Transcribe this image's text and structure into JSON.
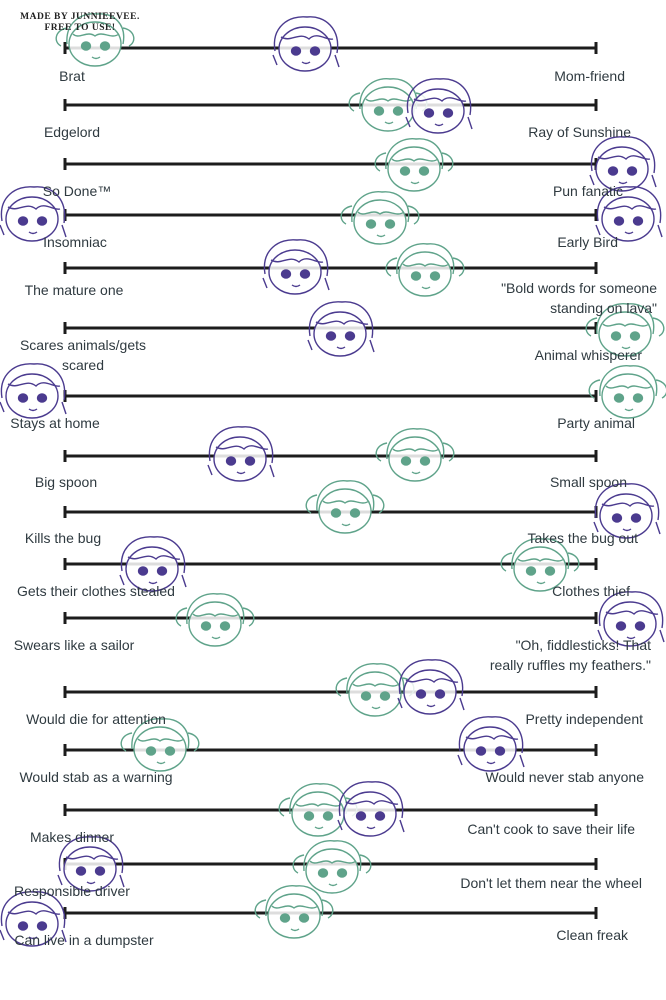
{
  "credit": [
    "MADE BY JUNNIEEVEE.",
    "FREE TO USE!"
  ],
  "scales": [
    {
      "left": [
        "Brat"
      ],
      "right": [
        "Mom-friend"
      ]
    },
    {
      "left": [
        "Edgelord"
      ],
      "right": [
        "Ray of Sunshine"
      ]
    },
    {
      "left": [
        "So Done™"
      ],
      "right": [
        "Pun fanatic"
      ]
    },
    {
      "left": [
        "Insomniac"
      ],
      "right": [
        "Early Bird"
      ]
    },
    {
      "left": [
        "The mature one"
      ],
      "right": [
        "\"Bold words for someone",
        "standing on lava\""
      ]
    },
    {
      "left": [
        "Scares animals/gets",
        "scared"
      ],
      "right": [
        "Animal whisperer"
      ]
    },
    {
      "left": [
        "Stays at home"
      ],
      "right": [
        "Party animal"
      ]
    },
    {
      "left": [
        "Big spoon"
      ],
      "right": [
        "Small spoon"
      ]
    },
    {
      "left": [
        "Kills the bug"
      ],
      "right": [
        "Takes the bug out"
      ]
    },
    {
      "left": [
        "Gets their clothes stealed"
      ],
      "right": [
        "Clothes thief"
      ]
    },
    {
      "left": [
        "Swears like a sailor"
      ],
      "right": [
        "\"Oh, fiddlesticks! That",
        "really ruffles my feathers.\""
      ]
    },
    {
      "left": [
        "Would die for attention"
      ],
      "right": [
        "Pretty independent"
      ]
    },
    {
      "left": [
        "Would stab as a warning"
      ],
      "right": [
        "Would never stab anyone"
      ]
    },
    {
      "left": [
        "Makes dinner"
      ],
      "right": [
        "Can't cook to save their life"
      ]
    },
    {
      "left": [
        "Responsible driver"
      ],
      "right": [
        "Don't let them near the wheel"
      ]
    },
    {
      "left": [
        "Can live in a dumpster"
      ],
      "right": [
        "Clean freak"
      ]
    }
  ]
}
